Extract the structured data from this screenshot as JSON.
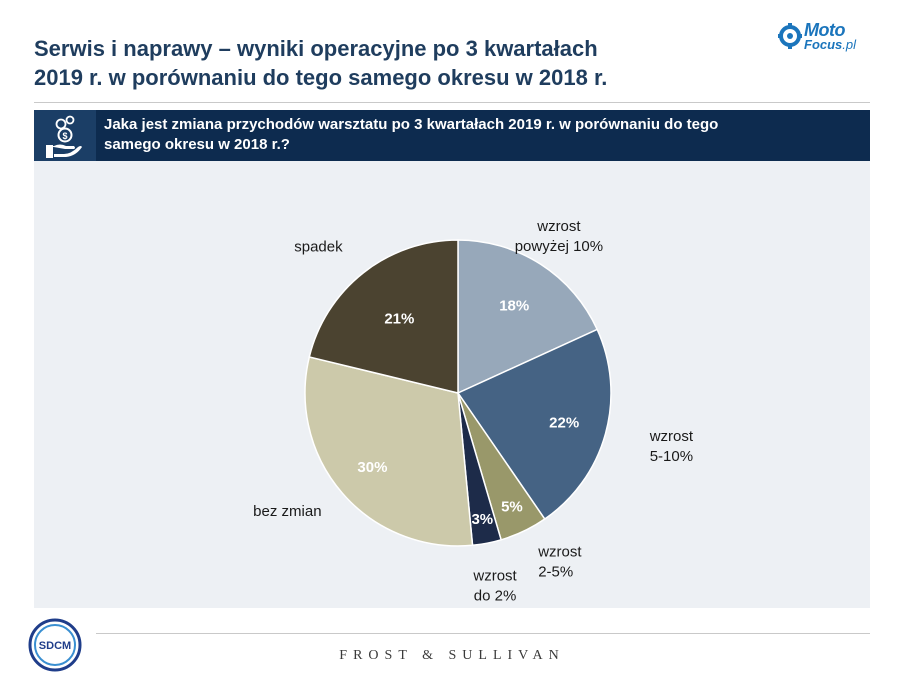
{
  "title": {
    "line1": "Serwis i naprawy – wyniki operacyjne po 3 kwartałach",
    "line2": "2019 r. w porównaniu do tego samego okresu w 2018 r."
  },
  "brand": {
    "moto": "Moto",
    "focus": "Focus",
    "tld": ".pl"
  },
  "question": {
    "line1": "Jaka jest zmiana przychodów warsztatu po 3 kwartałach 2019 r. w porównaniu do tego",
    "line2": "samego okresu w 2018 r.?",
    "icon": "money-hand-icon"
  },
  "chart_data": {
    "type": "pie",
    "start_angle_deg": 0,
    "direction": "clockwise",
    "categories": [
      "wzrost powyżej 10%",
      "wzrost 5-10%",
      "wzrost 2-5%",
      "wzrost do 2%",
      "bez zmian",
      "spadek"
    ],
    "values": [
      18,
      22,
      5,
      3,
      30,
      21
    ],
    "value_labels": [
      "18%",
      "22%",
      "5%",
      "3%",
      "30%",
      "21%"
    ],
    "category_label_lines": [
      [
        "wzrost",
        "powyżej 10%"
      ],
      [
        "wzrost",
        "5-10%"
      ],
      [
        "wzrost",
        "2-5%"
      ],
      [
        "wzrost",
        "do 2%"
      ],
      [
        "bez zmian"
      ],
      [
        "spadek"
      ]
    ],
    "colors": [
      "#97a8ba",
      "#456384",
      "#99986a",
      "#1d2b49",
      "#ccc9aa",
      "#4b4330"
    ],
    "value_label_colors": [
      "#ffffff",
      "#ffffff",
      "#ffffff",
      "#ffffff",
      "#ffffff",
      "#ffffff"
    ],
    "legend": "none"
  },
  "footer": {
    "sdcm": "SDCM",
    "partner": "FROST & SULLIVAN"
  }
}
